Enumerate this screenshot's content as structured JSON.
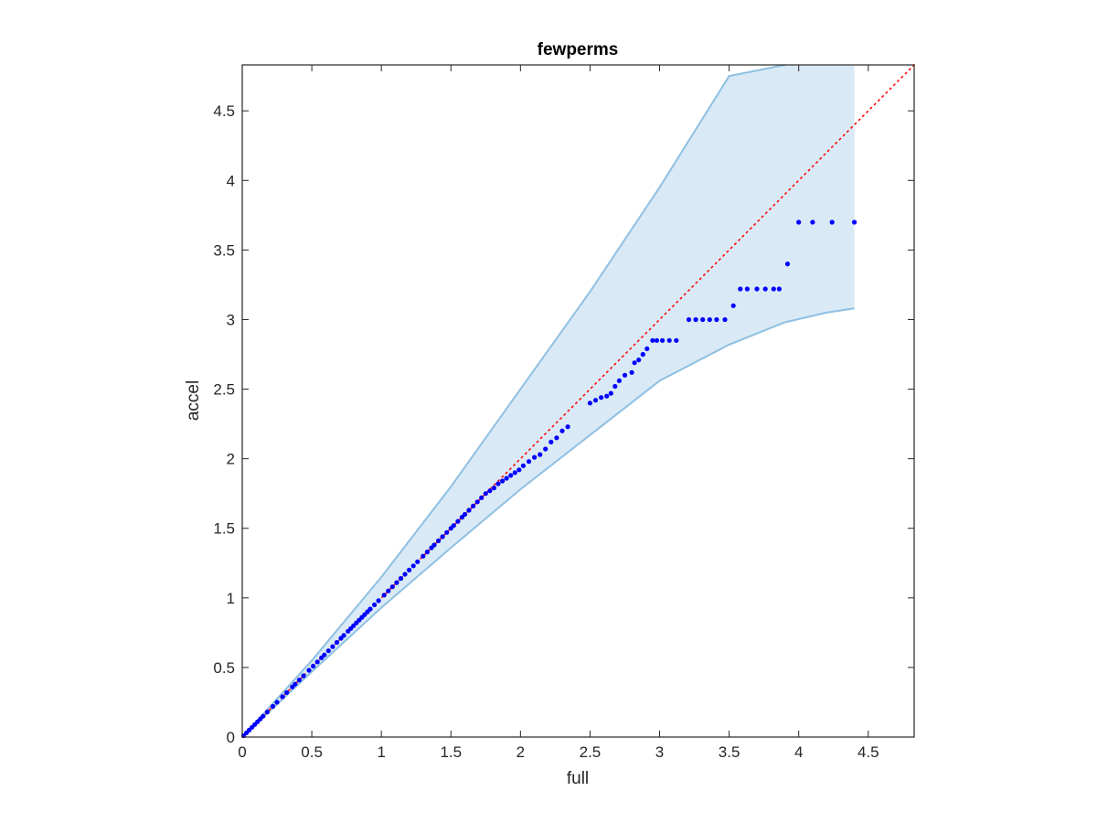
{
  "chart_data": {
    "type": "scatter",
    "title": "fewperms",
    "xlabel": "full",
    "ylabel": "accel",
    "xlim": [
      0,
      4.83
    ],
    "ylim": [
      0,
      4.83
    ],
    "xticks": [
      0,
      0.5,
      1,
      1.5,
      2,
      2.5,
      3,
      3.5,
      4,
      4.5
    ],
    "yticks": [
      0,
      0.5,
      1,
      1.5,
      2,
      2.5,
      3,
      3.5,
      4,
      4.5
    ],
    "xtick_labels": [
      "0",
      "0.5",
      "1",
      "1.5",
      "2",
      "2.5",
      "3",
      "3.5",
      "4",
      "4.5"
    ],
    "ytick_labels": [
      "0",
      "0.5",
      "1",
      "1.5",
      "2",
      "2.5",
      "3",
      "3.5",
      "4",
      "4.5"
    ],
    "grid": false,
    "colors": {
      "points": "#0000ff",
      "diagonal": "#ff0000",
      "band_fill": "#d9e9f5",
      "band_edge": "#8ec0e2",
      "axes": "#262626"
    },
    "reference_line": {
      "type": "identity",
      "style": "dotted",
      "color": "#ff0000"
    },
    "confidence_band": {
      "x": [
        0,
        0.5,
        1.0,
        1.5,
        2.0,
        2.5,
        3.0,
        3.5,
        3.9,
        4.2,
        4.4
      ],
      "upper": [
        0,
        0.55,
        1.15,
        1.8,
        2.5,
        3.2,
        3.95,
        4.75,
        4.83,
        4.83,
        4.83
      ],
      "lower": [
        0,
        0.47,
        0.93,
        1.36,
        1.78,
        2.17,
        2.56,
        2.82,
        2.98,
        3.05,
        3.08
      ],
      "upper_cap_x": 3.9
    },
    "series": [
      {
        "points": [
          [
            0.01,
            0.01
          ],
          [
            0.03,
            0.03
          ],
          [
            0.05,
            0.05
          ],
          [
            0.07,
            0.07
          ],
          [
            0.09,
            0.09
          ],
          [
            0.11,
            0.11
          ],
          [
            0.13,
            0.13
          ],
          [
            0.15,
            0.15
          ],
          [
            0.18,
            0.18
          ],
          [
            0.22,
            0.22
          ],
          [
            0.25,
            0.25
          ],
          [
            0.29,
            0.29
          ],
          [
            0.32,
            0.32
          ],
          [
            0.36,
            0.36
          ],
          [
            0.38,
            0.38
          ],
          [
            0.41,
            0.41
          ],
          [
            0.44,
            0.44
          ],
          [
            0.48,
            0.48
          ],
          [
            0.51,
            0.51
          ],
          [
            0.54,
            0.54
          ],
          [
            0.57,
            0.57
          ],
          [
            0.59,
            0.59
          ],
          [
            0.62,
            0.62
          ],
          [
            0.65,
            0.65
          ],
          [
            0.68,
            0.68
          ],
          [
            0.71,
            0.71
          ],
          [
            0.73,
            0.73
          ],
          [
            0.76,
            0.76
          ],
          [
            0.78,
            0.78
          ],
          [
            0.8,
            0.8
          ],
          [
            0.82,
            0.82
          ],
          [
            0.84,
            0.84
          ],
          [
            0.86,
            0.86
          ],
          [
            0.88,
            0.88
          ],
          [
            0.9,
            0.9
          ],
          [
            0.92,
            0.92
          ],
          [
            0.95,
            0.95
          ],
          [
            0.98,
            0.98
          ],
          [
            1.02,
            1.02
          ],
          [
            1.05,
            1.05
          ],
          [
            1.08,
            1.08
          ],
          [
            1.11,
            1.11
          ],
          [
            1.14,
            1.14
          ],
          [
            1.17,
            1.17
          ],
          [
            1.2,
            1.2
          ],
          [
            1.23,
            1.23
          ],
          [
            1.26,
            1.26
          ],
          [
            1.3,
            1.3
          ],
          [
            1.33,
            1.33
          ],
          [
            1.36,
            1.36
          ],
          [
            1.38,
            1.38
          ],
          [
            1.41,
            1.41
          ],
          [
            1.44,
            1.44
          ],
          [
            1.47,
            1.47
          ],
          [
            1.5,
            1.5
          ],
          [
            1.52,
            1.52
          ],
          [
            1.55,
            1.55
          ],
          [
            1.58,
            1.58
          ],
          [
            1.6,
            1.6
          ],
          [
            1.63,
            1.63
          ],
          [
            1.66,
            1.66
          ],
          [
            1.69,
            1.69
          ],
          [
            1.72,
            1.72
          ],
          [
            1.75,
            1.75
          ],
          [
            1.78,
            1.77
          ],
          [
            1.81,
            1.79
          ],
          [
            1.84,
            1.82
          ],
          [
            1.87,
            1.84
          ],
          [
            1.9,
            1.86
          ],
          [
            1.93,
            1.88
          ],
          [
            1.96,
            1.9
          ],
          [
            1.99,
            1.92
          ],
          [
            2.02,
            1.95
          ],
          [
            2.06,
            1.98
          ],
          [
            2.1,
            2.01
          ],
          [
            2.14,
            2.03
          ],
          [
            2.18,
            2.07
          ],
          [
            2.22,
            2.12
          ],
          [
            2.26,
            2.15
          ],
          [
            2.3,
            2.2
          ],
          [
            2.34,
            2.23
          ],
          [
            2.5,
            2.4
          ],
          [
            2.54,
            2.42
          ],
          [
            2.58,
            2.44
          ],
          [
            2.62,
            2.45
          ],
          [
            2.65,
            2.47
          ],
          [
            2.68,
            2.52
          ],
          [
            2.71,
            2.56
          ],
          [
            2.75,
            2.6
          ],
          [
            2.8,
            2.62
          ],
          [
            2.82,
            2.69
          ],
          [
            2.85,
            2.71
          ],
          [
            2.88,
            2.75
          ],
          [
            2.91,
            2.79
          ],
          [
            2.95,
            2.85
          ],
          [
            2.98,
            2.85
          ],
          [
            3.02,
            2.85
          ],
          [
            3.07,
            2.85
          ],
          [
            3.12,
            2.85
          ],
          [
            3.21,
            3.0
          ],
          [
            3.26,
            3.0
          ],
          [
            3.31,
            3.0
          ],
          [
            3.36,
            3.0
          ],
          [
            3.41,
            3.0
          ],
          [
            3.47,
            3.0
          ],
          [
            3.53,
            3.1
          ],
          [
            3.58,
            3.22
          ],
          [
            3.63,
            3.22
          ],
          [
            3.7,
            3.22
          ],
          [
            3.76,
            3.22
          ],
          [
            3.82,
            3.22
          ],
          [
            3.86,
            3.22
          ],
          [
            3.92,
            3.4
          ],
          [
            4.0,
            3.7
          ],
          [
            4.1,
            3.7
          ],
          [
            4.24,
            3.7
          ],
          [
            4.4,
            3.7
          ]
        ]
      }
    ]
  }
}
